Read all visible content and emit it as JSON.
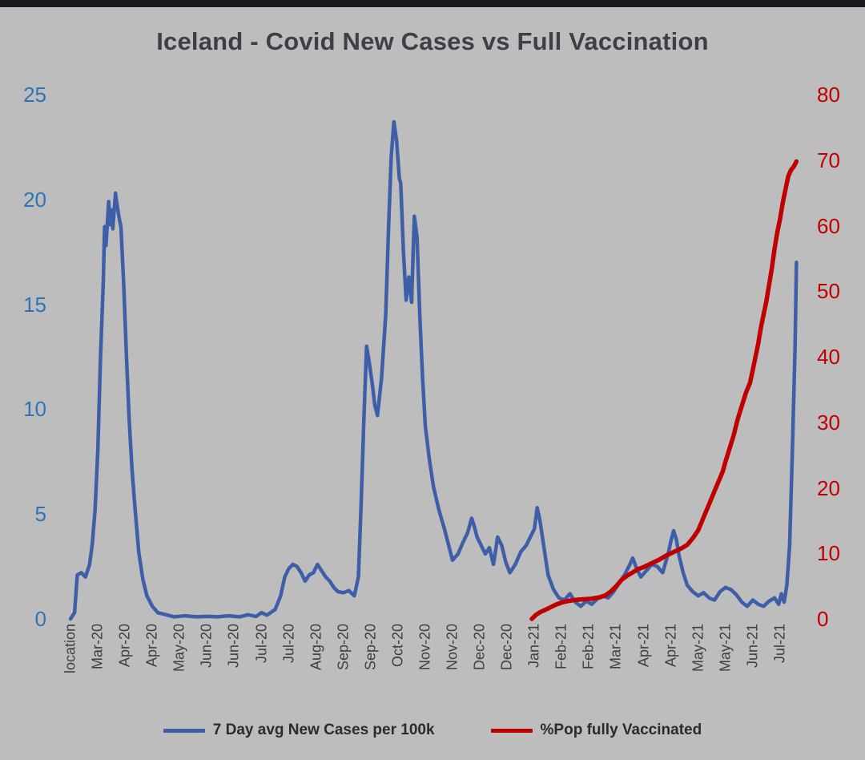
{
  "page": {
    "background": "#bdbdbd",
    "topbar_color": "#17171d"
  },
  "chart_data": {
    "type": "line",
    "title": "Iceland - Covid New Cases vs Full Vaccination",
    "title_color": "#3d4049",
    "x_tick_labels": [
      "location",
      "Mar-20",
      "Apr-20",
      "Apr-20",
      "May-20",
      "Jun-20",
      "Jun-20",
      "Jul-20",
      "Jul-20",
      "Aug-20",
      "Sep-20",
      "Sep-20",
      "Oct-20",
      "Nov-20",
      "Nov-20",
      "Dec-20",
      "Dec-20",
      "Jan-21",
      "Feb-21",
      "Feb-21",
      "Mar-21",
      "Apr-21",
      "Apr-21",
      "May-21",
      "May-21",
      "Jun-21",
      "Jul-21"
    ],
    "left_axis": {
      "ticks": [
        0,
        5,
        10,
        15,
        20,
        25
      ],
      "min": 0,
      "max": 25,
      "color": "#2E74B5"
    },
    "right_axis": {
      "ticks": [
        0,
        10,
        20,
        30,
        40,
        50,
        60,
        70,
        80
      ],
      "min": 0,
      "max": 80,
      "color": "#C00000"
    },
    "grid": false,
    "legend_position": "bottom",
    "series": [
      {
        "name": "7 Day avg New Cases per 100k",
        "axis": "left",
        "color": "#3E5FA8",
        "points": [
          [
            0,
            0
          ],
          [
            0.15,
            0.3
          ],
          [
            0.25,
            2.1
          ],
          [
            0.4,
            2.2
          ],
          [
            0.55,
            2.0
          ],
          [
            0.7,
            2.6
          ],
          [
            0.8,
            3.6
          ],
          [
            0.9,
            5.2
          ],
          [
            1.0,
            8.0
          ],
          [
            1.1,
            12.5
          ],
          [
            1.2,
            16.0
          ],
          [
            1.25,
            18.7
          ],
          [
            1.3,
            17.8
          ],
          [
            1.4,
            19.9
          ],
          [
            1.45,
            18.8
          ],
          [
            1.5,
            19.5
          ],
          [
            1.55,
            18.6
          ],
          [
            1.65,
            20.3
          ],
          [
            1.7,
            19.8
          ],
          [
            1.8,
            19.0
          ],
          [
            1.85,
            18.7
          ],
          [
            1.95,
            16.0
          ],
          [
            2.05,
            12.5
          ],
          [
            2.15,
            9.5
          ],
          [
            2.25,
            7.2
          ],
          [
            2.35,
            5.5
          ],
          [
            2.5,
            3.2
          ],
          [
            2.65,
            1.9
          ],
          [
            2.8,
            1.1
          ],
          [
            3.0,
            0.6
          ],
          [
            3.2,
            0.3
          ],
          [
            3.5,
            0.2
          ],
          [
            3.8,
            0.1
          ],
          [
            4.2,
            0.15
          ],
          [
            4.6,
            0.1
          ],
          [
            5.0,
            0.12
          ],
          [
            5.4,
            0.1
          ],
          [
            5.8,
            0.15
          ],
          [
            6.2,
            0.1
          ],
          [
            6.5,
            0.2
          ],
          [
            6.8,
            0.12
          ],
          [
            7.0,
            0.3
          ],
          [
            7.2,
            0.18
          ],
          [
            7.5,
            0.45
          ],
          [
            7.7,
            1.1
          ],
          [
            7.85,
            2.0
          ],
          [
            8.0,
            2.4
          ],
          [
            8.15,
            2.6
          ],
          [
            8.3,
            2.5
          ],
          [
            8.45,
            2.2
          ],
          [
            8.6,
            1.8
          ],
          [
            8.75,
            2.1
          ],
          [
            8.9,
            2.2
          ],
          [
            9.05,
            2.6
          ],
          [
            9.2,
            2.3
          ],
          [
            9.35,
            2.0
          ],
          [
            9.5,
            1.8
          ],
          [
            9.65,
            1.5
          ],
          [
            9.8,
            1.3
          ],
          [
            10.0,
            1.25
          ],
          [
            10.2,
            1.35
          ],
          [
            10.4,
            1.1
          ],
          [
            10.55,
            2.0
          ],
          [
            10.65,
            5.5
          ],
          [
            10.75,
            9.5
          ],
          [
            10.85,
            13.0
          ],
          [
            10.95,
            12.2
          ],
          [
            11.05,
            11.3
          ],
          [
            11.15,
            10.2
          ],
          [
            11.25,
            9.7
          ],
          [
            11.4,
            11.5
          ],
          [
            11.55,
            14.5
          ],
          [
            11.65,
            18.5
          ],
          [
            11.75,
            22.0
          ],
          [
            11.85,
            23.7
          ],
          [
            11.95,
            22.8
          ],
          [
            12.05,
            21.0
          ],
          [
            12.1,
            20.8
          ],
          [
            12.2,
            17.5
          ],
          [
            12.3,
            15.2
          ],
          [
            12.4,
            16.3
          ],
          [
            12.5,
            15.1
          ],
          [
            12.6,
            19.2
          ],
          [
            12.7,
            18.2
          ],
          [
            12.8,
            14.5
          ],
          [
            12.9,
            11.5
          ],
          [
            13.0,
            9.2
          ],
          [
            13.15,
            7.6
          ],
          [
            13.3,
            6.3
          ],
          [
            13.5,
            5.2
          ],
          [
            13.7,
            4.3
          ],
          [
            13.9,
            3.3
          ],
          [
            14.0,
            2.8
          ],
          [
            14.2,
            3.1
          ],
          [
            14.4,
            3.7
          ],
          [
            14.55,
            4.1
          ],
          [
            14.7,
            4.8
          ],
          [
            14.8,
            4.4
          ],
          [
            14.9,
            3.9
          ],
          [
            15.05,
            3.5
          ],
          [
            15.2,
            3.1
          ],
          [
            15.35,
            3.4
          ],
          [
            15.5,
            2.6
          ],
          [
            15.65,
            3.9
          ],
          [
            15.8,
            3.5
          ],
          [
            15.95,
            2.7
          ],
          [
            16.1,
            2.2
          ],
          [
            16.3,
            2.6
          ],
          [
            16.5,
            3.2
          ],
          [
            16.7,
            3.5
          ],
          [
            16.85,
            3.9
          ],
          [
            17.0,
            4.3
          ],
          [
            17.1,
            5.3
          ],
          [
            17.2,
            4.7
          ],
          [
            17.35,
            3.4
          ],
          [
            17.5,
            2.1
          ],
          [
            17.7,
            1.4
          ],
          [
            17.9,
            1.0
          ],
          [
            18.1,
            0.9
          ],
          [
            18.3,
            1.2
          ],
          [
            18.5,
            0.8
          ],
          [
            18.7,
            0.6
          ],
          [
            18.9,
            0.85
          ],
          [
            19.1,
            0.7
          ],
          [
            19.3,
            0.95
          ],
          [
            19.5,
            1.1
          ],
          [
            19.7,
            1.0
          ],
          [
            19.9,
            1.3
          ],
          [
            20.1,
            1.7
          ],
          [
            20.3,
            2.1
          ],
          [
            20.5,
            2.6
          ],
          [
            20.6,
            2.9
          ],
          [
            20.75,
            2.4
          ],
          [
            20.9,
            2.0
          ],
          [
            21.1,
            2.3
          ],
          [
            21.3,
            2.6
          ],
          [
            21.5,
            2.5
          ],
          [
            21.7,
            2.2
          ],
          [
            21.9,
            3.1
          ],
          [
            22.0,
            3.7
          ],
          [
            22.1,
            4.2
          ],
          [
            22.2,
            3.8
          ],
          [
            22.3,
            3.0
          ],
          [
            22.45,
            2.2
          ],
          [
            22.6,
            1.6
          ],
          [
            22.8,
            1.3
          ],
          [
            23.0,
            1.1
          ],
          [
            23.2,
            1.25
          ],
          [
            23.4,
            1.0
          ],
          [
            23.6,
            0.9
          ],
          [
            23.8,
            1.3
          ],
          [
            24.0,
            1.5
          ],
          [
            24.2,
            1.4
          ],
          [
            24.4,
            1.15
          ],
          [
            24.6,
            0.8
          ],
          [
            24.8,
            0.6
          ],
          [
            25.0,
            0.9
          ],
          [
            25.2,
            0.7
          ],
          [
            25.4,
            0.6
          ],
          [
            25.6,
            0.85
          ],
          [
            25.8,
            1.0
          ],
          [
            25.95,
            0.7
          ],
          [
            26.05,
            1.2
          ],
          [
            26.15,
            0.8
          ],
          [
            26.25,
            1.6
          ],
          [
            26.35,
            3.5
          ],
          [
            26.45,
            8.0
          ],
          [
            26.55,
            13.0
          ],
          [
            26.6,
            17.0
          ]
        ]
      },
      {
        "name": "%Pop fully Vaccinated",
        "axis": "right",
        "color": "#C00000",
        "points": [
          [
            16.9,
            0
          ],
          [
            17.05,
            0.6
          ],
          [
            17.2,
            1.0
          ],
          [
            17.4,
            1.4
          ],
          [
            17.6,
            1.8
          ],
          [
            17.8,
            2.2
          ],
          [
            18.0,
            2.5
          ],
          [
            18.2,
            2.7
          ],
          [
            18.5,
            2.9
          ],
          [
            18.8,
            3.0
          ],
          [
            19.1,
            3.1
          ],
          [
            19.4,
            3.3
          ],
          [
            19.6,
            3.6
          ],
          [
            19.8,
            4.2
          ],
          [
            20.0,
            5.0
          ],
          [
            20.2,
            6.0
          ],
          [
            20.4,
            6.6
          ],
          [
            20.6,
            7.1
          ],
          [
            20.8,
            7.6
          ],
          [
            21.0,
            7.9
          ],
          [
            21.2,
            8.3
          ],
          [
            21.4,
            8.7
          ],
          [
            21.6,
            9.1
          ],
          [
            21.8,
            9.6
          ],
          [
            22.0,
            10.0
          ],
          [
            22.2,
            10.4
          ],
          [
            22.4,
            10.8
          ],
          [
            22.6,
            11.3
          ],
          [
            22.8,
            12.3
          ],
          [
            23.0,
            13.5
          ],
          [
            23.15,
            15.0
          ],
          [
            23.3,
            16.5
          ],
          [
            23.45,
            18.0
          ],
          [
            23.6,
            19.5
          ],
          [
            23.75,
            21.0
          ],
          [
            23.9,
            22.5
          ],
          [
            24.0,
            24.0
          ],
          [
            24.15,
            26.0
          ],
          [
            24.3,
            28.0
          ],
          [
            24.45,
            30.5
          ],
          [
            24.6,
            32.5
          ],
          [
            24.75,
            34.5
          ],
          [
            24.9,
            36.0
          ],
          [
            25.0,
            38.0
          ],
          [
            25.1,
            40.0
          ],
          [
            25.2,
            42.0
          ],
          [
            25.3,
            44.5
          ],
          [
            25.4,
            46.5
          ],
          [
            25.5,
            48.5
          ],
          [
            25.6,
            51.0
          ],
          [
            25.7,
            53.5
          ],
          [
            25.8,
            56.5
          ],
          [
            25.9,
            59.0
          ],
          [
            26.0,
            61.0
          ],
          [
            26.1,
            63.5
          ],
          [
            26.2,
            65.5
          ],
          [
            26.3,
            67.5
          ],
          [
            26.4,
            68.5
          ],
          [
            26.5,
            69.0
          ],
          [
            26.6,
            69.8
          ]
        ]
      }
    ]
  }
}
